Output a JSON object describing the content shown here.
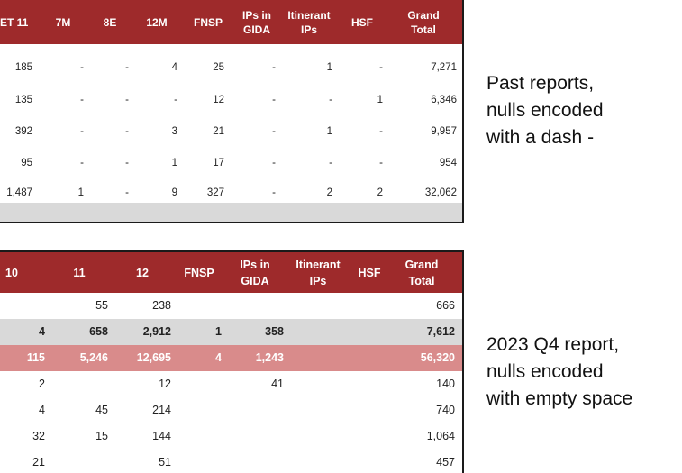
{
  "table1": {
    "header_bg": "#9e2a2b",
    "footer_bg": "#d9d9d9",
    "headers": [
      "ET 11",
      "7M",
      "8E",
      "12M",
      "FNSP",
      "IPs in\nGIDA",
      "Itinerant\nIPs",
      "HSF",
      "Grand\nTotal"
    ],
    "rows": [
      [
        "185",
        "-",
        "-",
        "4",
        "25",
        "-",
        "1",
        "-",
        "7,271"
      ],
      [
        "135",
        "-",
        "-",
        "-",
        "12",
        "-",
        "-",
        "1",
        "6,346"
      ],
      [
        "392",
        "-",
        "-",
        "3",
        "21",
        "-",
        "1",
        "-",
        "9,957"
      ],
      [
        "95",
        "-",
        "-",
        "1",
        "17",
        "-",
        "-",
        "-",
        "954"
      ],
      [
        "1,487",
        "1",
        "-",
        "9",
        "327",
        "-",
        "2",
        "2",
        "32,062"
      ]
    ]
  },
  "table2": {
    "header_bg": "#9e2a2b",
    "grey_bg": "#d9d9d9",
    "highlight_bg": "#d98b8b",
    "headers": [
      "10",
      "11",
      "12",
      "FNSP",
      "IPs in\nGIDA",
      "Itinerant\nIPs",
      "HSF",
      "Grand\nTotal"
    ],
    "rows": [
      {
        "style": "plain",
        "cells": [
          "",
          "55",
          "238",
          "",
          "",
          "",
          "",
          "666"
        ]
      },
      {
        "style": "grey",
        "cells": [
          "4",
          "658",
          "2,912",
          "1",
          "358",
          "",
          "",
          "7,612"
        ]
      },
      {
        "style": "highlight",
        "cells": [
          "115",
          "5,246",
          "12,695",
          "4",
          "1,243",
          "",
          "",
          "56,320"
        ]
      },
      {
        "style": "plain",
        "cells": [
          "2",
          "",
          "12",
          "",
          "41",
          "",
          "",
          "140"
        ]
      },
      {
        "style": "plain",
        "cells": [
          "4",
          "45",
          "214",
          "",
          "",
          "",
          "",
          "740"
        ]
      },
      {
        "style": "plain",
        "cells": [
          "32",
          "15",
          "144",
          "",
          "",
          "",
          "",
          "1,064"
        ]
      },
      {
        "style": "plain",
        "cells": [
          "21",
          "",
          "51",
          "",
          "",
          "",
          "",
          "457"
        ]
      }
    ]
  },
  "notes": {
    "past": "Past reports,\nnulls encoded\nwith a dash -",
    "q4": "2023 Q4 report,\nnulls encoded\nwith empty space"
  }
}
